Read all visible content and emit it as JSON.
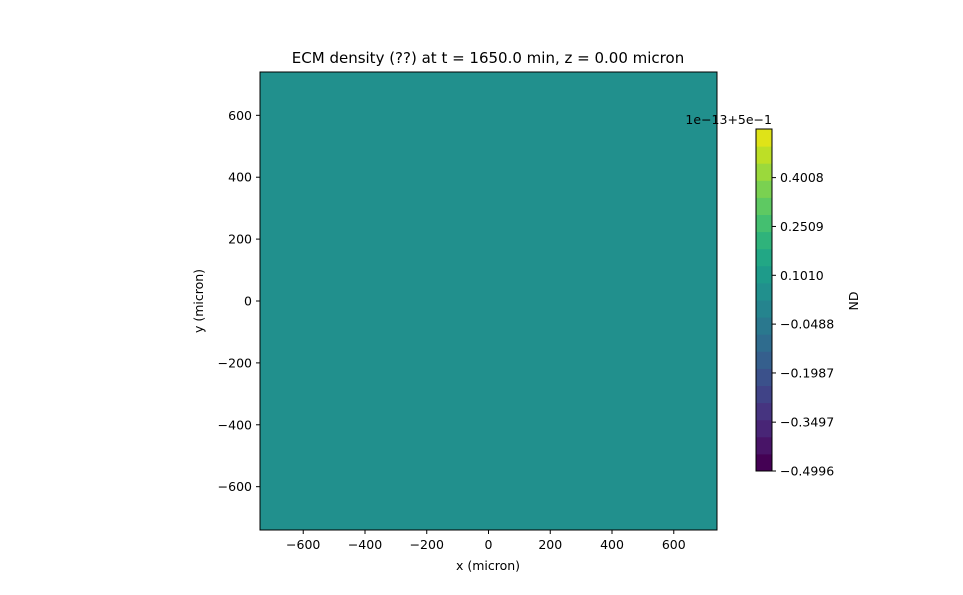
{
  "chart_data": {
    "type": "heatmap",
    "title": "ECM density (??) at t = 1650.0 min, z = 0.00 micron",
    "xlabel": "x (micron)",
    "ylabel": "y (micron)",
    "xlim": [
      -740,
      740
    ],
    "ylim": [
      -740,
      740
    ],
    "x_ticks": [
      -600,
      -400,
      -200,
      0,
      200,
      400,
      600
    ],
    "x_tick_labels": [
      "−600",
      "−400",
      "−200",
      "0",
      "200",
      "400",
      "600"
    ],
    "y_ticks": [
      600,
      400,
      200,
      0,
      -200,
      -400,
      -600
    ],
    "y_tick_labels": [
      "600",
      "400",
      "200",
      "0",
      "−200",
      "−400",
      "−600"
    ],
    "field_value_offset_label": "1e−13+5e−1",
    "field_uniform_value": 0.5,
    "field_color": "#21908d",
    "colorbar": {
      "label": "ND",
      "offset_text": "1e−13+5e−1",
      "range": [
        -0.4996,
        0.55
      ],
      "tick_values": [
        0.4008,
        0.2509,
        0.101,
        -0.0488,
        -0.1987,
        -0.3497,
        -0.4996
      ],
      "tick_labels": [
        "0.4008",
        "0.2509",
        "0.1010",
        "−0.0488",
        "−0.1987",
        "−0.3497",
        "−0.4996"
      ],
      "levels": 20,
      "colormap_colors": [
        "#440154",
        "#481467",
        "#482576",
        "#463480",
        "#404387",
        "#3b518b",
        "#355f8d",
        "#2f6c8e",
        "#2a788e",
        "#25848e",
        "#21908d",
        "#1e9b8a",
        "#22a785",
        "#2fb37b",
        "#44bf70",
        "#5ec962",
        "#7ad151",
        "#9bd93c",
        "#bddf26",
        "#dfe318"
      ]
    }
  }
}
